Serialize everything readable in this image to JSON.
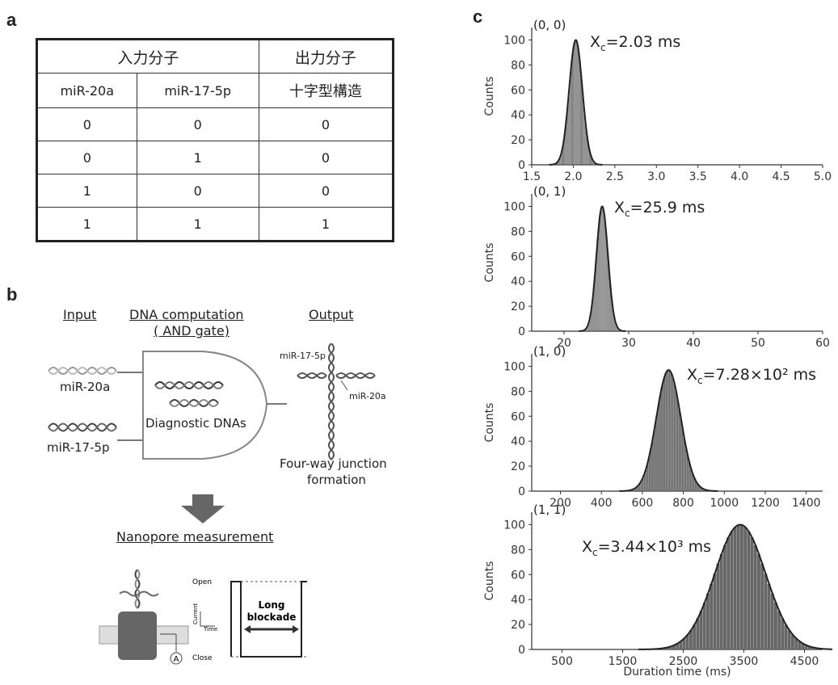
{
  "panels": {
    "a": "a",
    "b": "b",
    "c": "c"
  },
  "truth_table": {
    "input_header": "入力分子",
    "output_header": "出力分子",
    "col_labels": [
      "miR-20a",
      "miR-17-5p",
      "十字型構造"
    ],
    "rows": [
      [
        "0",
        "0",
        "0"
      ],
      [
        "0",
        "1",
        "0"
      ],
      [
        "1",
        "0",
        "0"
      ],
      [
        "1",
        "1",
        "1"
      ]
    ]
  },
  "diagram_b": {
    "input_title": "Input",
    "computation_title_1": "DNA computation",
    "computation_title_2": "( AND gate)",
    "output_title": "Output",
    "input1": "miR-20a",
    "input2": "miR-17-5p",
    "gate_label": "Diagnostic DNAs",
    "junction_label_top": "miR-17-5p",
    "junction_label_right": "miR-20a",
    "output_caption_1": "Four-way junction",
    "output_caption_2": "formation",
    "nanopore_title": "Nanopore measurement",
    "trace_open": "Open",
    "trace_close": "Close",
    "trace_current": "Current",
    "trace_time": "Time",
    "blockade_1": "Long",
    "blockade_2": "blockade",
    "ammeter": "A"
  },
  "chart_data": [
    {
      "type": "bar",
      "title": "(0, 0)",
      "annotation": "Xₑ=2.03 ms",
      "annotation_main": "X",
      "annotation_sub": "c",
      "annotation_rest": "=2.03 ms",
      "ylabel": "Counts",
      "xlim": [
        1.5,
        5.0
      ],
      "ylim": [
        0,
        110
      ],
      "xticks": [
        "1.5",
        "2.0",
        "2.5",
        "3.0",
        "3.5",
        "4.0",
        "4.5",
        "5.0"
      ],
      "yticks": [
        "0",
        "20",
        "40",
        "60",
        "80",
        "100"
      ],
      "peak_x": 2.03,
      "peak_y": 100,
      "width": 0.08
    },
    {
      "type": "bar",
      "title": "(0, 1)",
      "annotation_main": "X",
      "annotation_sub": "c",
      "annotation_rest": "=25.9 ms",
      "ylabel": "Counts",
      "xlim": [
        15,
        60
      ],
      "ylim": [
        0,
        110
      ],
      "xticks": [
        "20",
        "30",
        "40",
        "50",
        "60"
      ],
      "yticks": [
        "0",
        "20",
        "40",
        "60",
        "80",
        "100"
      ],
      "peak_x": 25.9,
      "peak_y": 100,
      "width": 0.9
    },
    {
      "type": "bar",
      "title": "(1, 0)",
      "annotation_main": "X",
      "annotation_sub": "c",
      "annotation_rest": "=7.28×10² ms",
      "ylabel": "Counts",
      "xlim": [
        60,
        1480
      ],
      "ylim": [
        0,
        110
      ],
      "xticks": [
        "200",
        "400",
        "600",
        "800",
        "1000",
        "1200",
        "1400"
      ],
      "yticks": [
        "0",
        "20",
        "40",
        "60",
        "80",
        "100"
      ],
      "peak_x": 728,
      "peak_y": 97,
      "width": 60
    },
    {
      "type": "bar",
      "title": "(1, 1)",
      "annotation_main": "X",
      "annotation_sub": "c",
      "annotation_rest": "=3.44×10³ ms",
      "ylabel": "Counts",
      "xlabel": "Duration time (ms)",
      "xlim": [
        0,
        4800
      ],
      "ylim": [
        0,
        110
      ],
      "xticks": [
        "500",
        "1500",
        "2500",
        "3500",
        "4500"
      ],
      "yticks": [
        "0",
        "20",
        "40",
        "60",
        "80",
        "100"
      ],
      "peak_x": 3440,
      "peak_y": 100,
      "width": 420
    }
  ]
}
